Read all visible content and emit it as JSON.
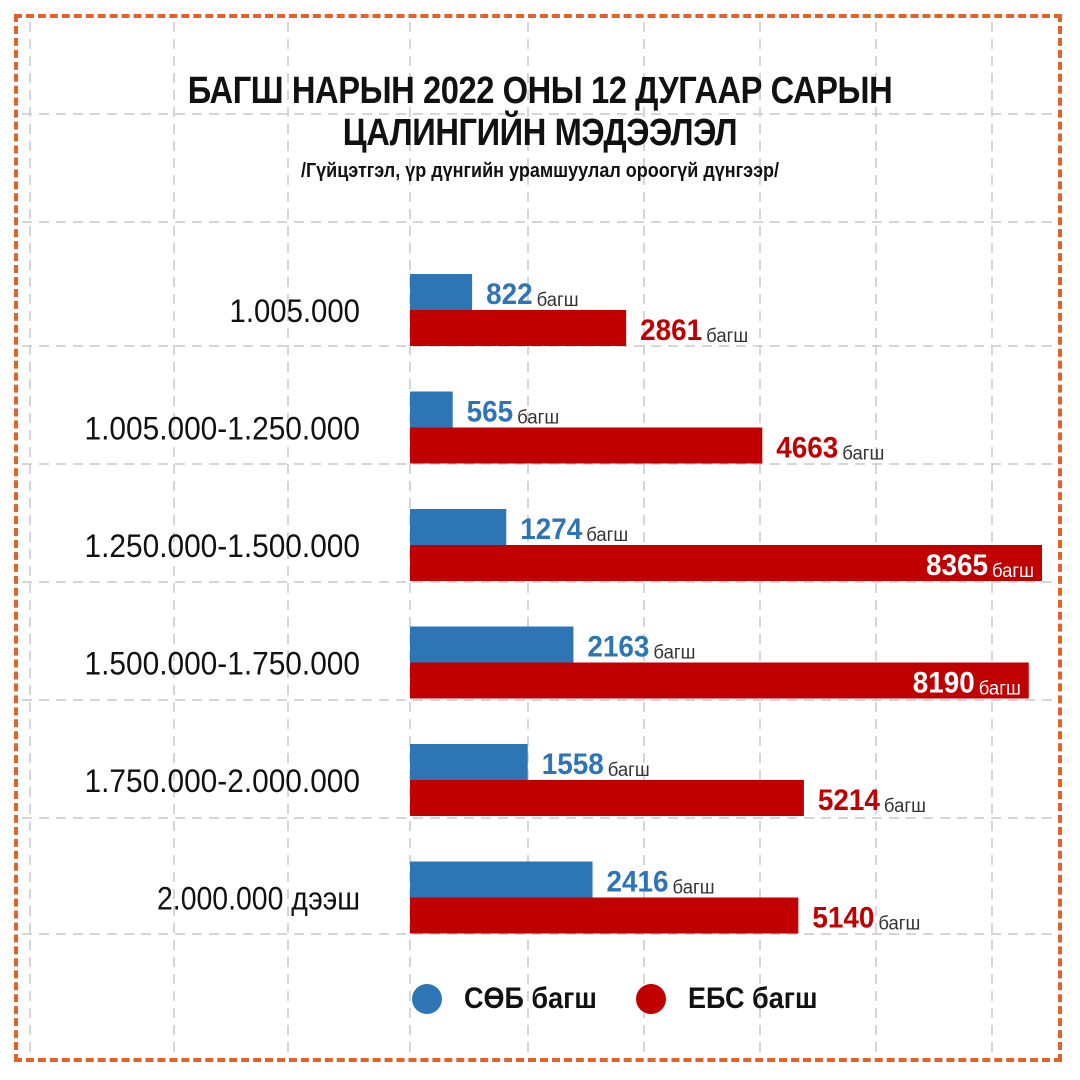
{
  "chart_data": {
    "type": "bar",
    "orientation": "horizontal",
    "title_line1": "БАГШ НАРЫН 2022 ОНЫ 12 ДУГААР САРЫН",
    "title_line2": "ЦАЛИНГИЙН МЭДЭЭЛЭЛ",
    "subtitle": "/Гүйцэтгэл, үр дүнгийн урамшуулал ороогүй дүнгээр/",
    "categories": [
      "1.005.000",
      "1.005.000-1.250.000",
      "1.250.000-1.500.000",
      "1.500.000-1.750.000",
      "1.750.000-2.000.000",
      "2.000.000 дээш"
    ],
    "unit": "багш",
    "series": [
      {
        "name": "СӨБ багш",
        "color": "#2e75b6",
        "values": [
          822,
          565,
          1274,
          2163,
          1558,
          2416
        ]
      },
      {
        "name": "ЕБС багш",
        "color": "#c00000",
        "values": [
          2861,
          4663,
          8365,
          8190,
          5214,
          5140
        ]
      }
    ],
    "xlim": [
      0,
      8365
    ],
    "grid": true,
    "legend_position": "bottom"
  },
  "colors": {
    "frame": "#e2622a",
    "grid": "#c9c9c9",
    "text": "#111111"
  }
}
